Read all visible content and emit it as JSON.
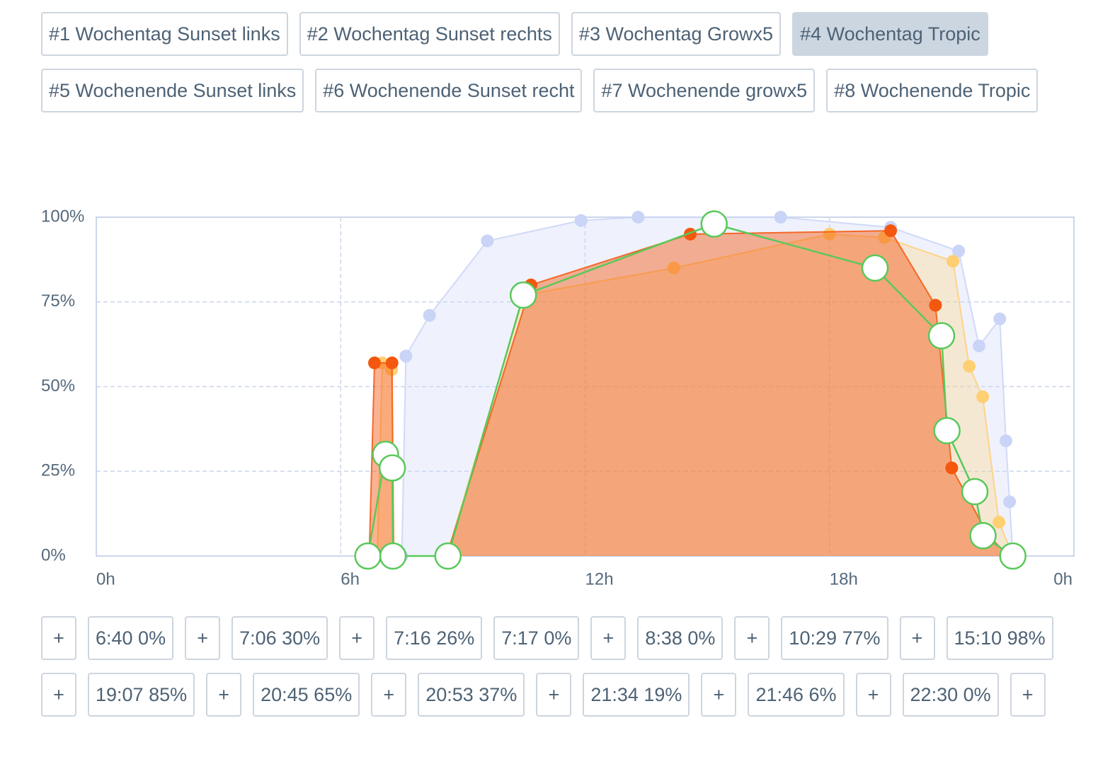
{
  "tabs": {
    "items": [
      "#1 Wochentag Sunset links",
      "#2 Wochentag Sunset rechts",
      "#3 Wochentag Growx5",
      "#4 Wochentag Tropic",
      "#5 Wochenende Sunset links",
      "#6 Wochenende Sunset recht",
      "#7 Wochenende growx5",
      "#8 Wochenende Tropic"
    ],
    "selected": 3
  },
  "chart_data": {
    "type": "line",
    "xlim": [
      0,
      24
    ],
    "xticks": [
      {
        "value": 0,
        "label": "0h"
      },
      {
        "value": 6,
        "label": "6h"
      },
      {
        "value": 12,
        "label": "12h"
      },
      {
        "value": 18,
        "label": "18h"
      },
      {
        "value": 24,
        "label": "0h"
      }
    ],
    "ylim": [
      0,
      100
    ],
    "yticks": [
      {
        "value": 0,
        "label": "0%"
      },
      {
        "value": 25,
        "label": "25%"
      },
      {
        "value": 50,
        "label": "50%"
      },
      {
        "value": 75,
        "label": "75%"
      },
      {
        "value": 100,
        "label": "100%"
      }
    ],
    "grid": true,
    "series": [
      {
        "color": "#c9d4f7",
        "x": [
          7.5,
          7.6,
          8.18,
          9.6,
          11.9,
          13.3,
          16.8,
          19.5,
          21.17,
          21.67,
          22.18,
          22.33,
          22.42,
          22.5
        ],
        "values": [
          0,
          59,
          71,
          93,
          99,
          100,
          100,
          97,
          90,
          62,
          70,
          34,
          16,
          0
        ]
      },
      {
        "color": "#ffcf73",
        "x": [
          6.9,
          7.02,
          7.25,
          7.3,
          8.6,
          10.5,
          14.18,
          18,
          19.35,
          21.03,
          21.43,
          21.76,
          22.16,
          22.5
        ],
        "values": [
          0,
          57,
          55,
          0,
          0,
          77,
          85,
          95,
          94,
          87,
          56,
          47,
          10,
          0
        ]
      },
      {
        "color": "#f4570e",
        "x": [
          6.7,
          6.83,
          7.26,
          7.3,
          8.6,
          10.67,
          14.58,
          19.5,
          20.6,
          21.0,
          21.9,
          22.4
        ],
        "values": [
          0,
          57,
          57,
          0,
          0,
          80,
          95,
          96,
          74,
          26,
          6,
          0
        ]
      },
      {
        "color": "#5ac85a",
        "x": [
          6.667,
          7.1,
          7.267,
          7.283,
          8.633,
          10.483,
          15.167,
          19.117,
          20.75,
          20.883,
          21.567,
          21.767,
          22.5
        ],
        "values": [
          0,
          30,
          26,
          0,
          0,
          77,
          98,
          85,
          65,
          37,
          19,
          6,
          0
        ]
      }
    ]
  },
  "editor": {
    "buttons": [
      "+",
      "6:40 0%",
      "+",
      "7:06 30%",
      "+",
      "7:16 26%",
      "7:17 0%",
      "+",
      "8:38 0%",
      "+",
      "10:29 77%",
      "+",
      "15:10 98%",
      "+",
      "19:07 85%",
      "+",
      "20:45 65%",
      "+",
      "20:53 37%",
      "+",
      "21:34 19%",
      "+",
      "21:46 6%",
      "+",
      "22:30 0%",
      "+"
    ]
  }
}
